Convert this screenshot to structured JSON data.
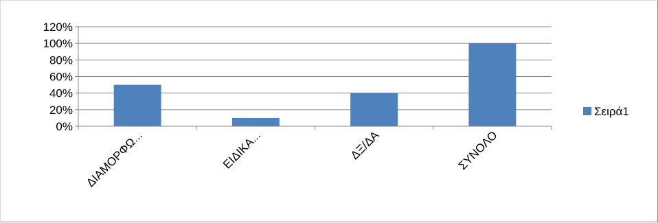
{
  "chart_data": {
    "type": "bar",
    "categories": [
      "ΔΙΑΜΟΡΦΩ...",
      "ΕΙΔΙΚΑ...",
      "ΔΞ/ΔΑ",
      "ΣΥΝΟΛΟ"
    ],
    "series": [
      {
        "name": "Σειρά1",
        "values": [
          0.5,
          0.1,
          0.4,
          1.0
        ]
      }
    ],
    "ylim": [
      0,
      1.2
    ],
    "yticks": [
      0,
      0.2,
      0.4,
      0.6,
      0.8,
      1.0,
      1.2
    ],
    "ytick_labels": [
      "0%",
      "20%",
      "40%",
      "60%",
      "80%",
      "100%",
      "120%"
    ],
    "y_format": "percent",
    "grid": true,
    "legend_position": "right",
    "bar_color": "#4f81bd",
    "grid_color": "#868686"
  }
}
